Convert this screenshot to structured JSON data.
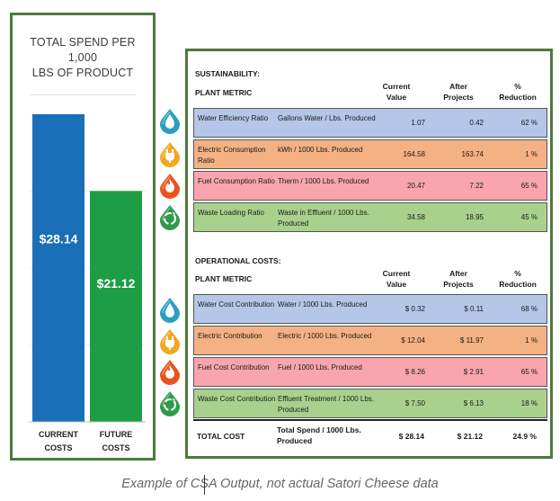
{
  "colors": {
    "panel_border": "#4e7a3c",
    "bar_current": "#1a6fb8",
    "bar_future": "#1e9e44",
    "row_water": "#b4c7e7",
    "row_electric": "#f4b183",
    "row_fuel": "#f8a5ad",
    "row_waste": "#a9d18e",
    "icon_water": "#2a9fc0",
    "icon_electric": "#f0a81e",
    "icon_fuel": "#e8541c",
    "icon_waste": "#2e9a4a"
  },
  "chart_data": {
    "type": "bar",
    "title": [
      "TOTAL SPEND PER",
      "1,000",
      "LBS OF PRODUCT"
    ],
    "categories": [
      [
        "CURRENT",
        "COSTS"
      ],
      [
        "FUTURE",
        "COSTS"
      ]
    ],
    "values": [
      28.14,
      21.12
    ],
    "data_labels": [
      "$28.14",
      "$21.12"
    ],
    "ylim": [
      0,
      28.14
    ],
    "grid": true
  },
  "icons": [
    "water-drop",
    "power-plug",
    "flame",
    "recycle",
    "water-drop",
    "power-plug",
    "flame",
    "recycle"
  ],
  "table": {
    "headers": {
      "current": [
        "Current",
        "Value"
      ],
      "after": [
        "After",
        "Projects"
      ],
      "reduction": [
        "%",
        "Reduction"
      ]
    },
    "sustainability": {
      "title": "SUSTAINABILITY:",
      "plant_metric": "PLANT METRIC",
      "rows": [
        {
          "metric": "Water Efficiency Ratio",
          "unit": "Gallons Water / Lbs. Produced",
          "current": "1.07",
          "after": "0.42",
          "reduction": "62 %"
        },
        {
          "metric": "Electric Consumption Ratio",
          "unit": "kWh / 1000 Lbs. Produced",
          "current": "164.58",
          "after": "163.74",
          "reduction": "1 %"
        },
        {
          "metric": "Fuel Consumption Ratio",
          "unit": "Therm / 1000 Lbs. Produced",
          "current": "20.47",
          "after": "7.22",
          "reduction": "65 %"
        },
        {
          "metric": "Waste Loading Ratio",
          "unit": "Waste in Effluent / 1000 Lbs. Produced",
          "current": "34.58",
          "after": "18.95",
          "reduction": "45 %"
        }
      ]
    },
    "operational": {
      "title": "OPERATIONAL COSTS:",
      "plant_metric": "PLANT METRIC",
      "rows": [
        {
          "metric": "Water Cost Contribution",
          "unit": "Water / 1000 Lbs. Produced",
          "current": "$ 0.32",
          "after": "$ 0.11",
          "reduction": "68 %"
        },
        {
          "metric": "Electric Contribution",
          "unit": "Electric / 1000 Lbs. Produced",
          "current": "$ 12.04",
          "after": "$ 11.97",
          "reduction": "1 %"
        },
        {
          "metric": "Fuel Cost Contribution",
          "unit": "Fuel / 1000 Lbs. Produced",
          "current": "$ 8.26",
          "after": "$ 2.91",
          "reduction": "65 %"
        },
        {
          "metric": "Waste Cost Contribution",
          "unit": "Effluent Treatment / 1000 Lbs. Produced",
          "current": "$ 7.50",
          "after": "$ 6.13",
          "reduction": "18 %"
        }
      ]
    },
    "total": {
      "metric": "TOTAL COST",
      "unit": "Total Spend / 1000 Lbs. Produced",
      "current": "$ 28.14",
      "after": "$ 21.12",
      "reduction": "24.9 %"
    }
  },
  "caption": "Example of CSA Output, not actual Satori Cheese data"
}
